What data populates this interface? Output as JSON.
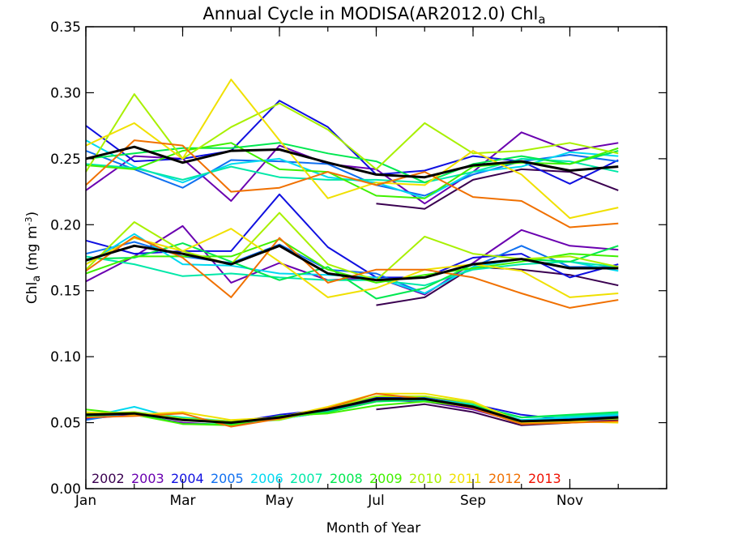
{
  "chart_data": {
    "type": "line",
    "title": {
      "main": "Annual Cycle in MODISA(AR2012.0) Chl",
      "sub": "a"
    },
    "xlabel": "Month of Year",
    "ylabel": {
      "main": "Chl",
      "sub": "a",
      "unit_open": " (mg m",
      "unit_sup": "-3",
      "unit_close": ")"
    },
    "xlim": [
      1,
      13
    ],
    "ylim": [
      0,
      0.35
    ],
    "x_ticks": [
      {
        "value": 1,
        "label": "Jan"
      },
      {
        "value": 3,
        "label": "Mar"
      },
      {
        "value": 5,
        "label": "May"
      },
      {
        "value": 7,
        "label": "Jul"
      },
      {
        "value": 9,
        "label": "Sep"
      },
      {
        "value": 11,
        "label": "Nov"
      }
    ],
    "y_ticks": [
      {
        "value": 0.0,
        "label": "0.00"
      },
      {
        "value": 0.05,
        "label": "0.05"
      },
      {
        "value": 0.1,
        "label": "0.10"
      },
      {
        "value": 0.15,
        "label": "0.15"
      },
      {
        "value": 0.2,
        "label": "0.20"
      },
      {
        "value": 0.25,
        "label": "0.25"
      },
      {
        "value": 0.3,
        "label": "0.30"
      },
      {
        "value": 0.35,
        "label": "0.35"
      }
    ],
    "x": [
      1,
      2,
      3,
      4,
      5,
      6,
      7,
      8,
      9,
      10,
      11,
      12
    ],
    "legend_placement": "bottom-left",
    "series": [
      {
        "name": "2002",
        "color": "#3a0050",
        "high": [
          null,
          null,
          null,
          null,
          null,
          null,
          0.216,
          0.212,
          0.234,
          0.242,
          0.24,
          0.226
        ],
        "mid": [
          null,
          null,
          null,
          null,
          null,
          null,
          0.139,
          0.145,
          0.168,
          0.166,
          0.162,
          0.154
        ],
        "low": [
          null,
          null,
          null,
          null,
          null,
          null,
          0.06,
          0.064,
          0.058,
          0.048,
          0.05,
          0.052
        ]
      },
      {
        "name": "2003",
        "color": "#6a00b0",
        "high": [
          0.226,
          0.252,
          0.25,
          0.218,
          0.26,
          0.246,
          0.242,
          0.216,
          0.24,
          0.27,
          0.256,
          0.262
        ],
        "mid": [
          0.157,
          0.176,
          0.199,
          0.156,
          0.171,
          0.158,
          0.16,
          0.147,
          0.171,
          0.196,
          0.184,
          0.181
        ],
        "low": [
          0.053,
          0.056,
          0.05,
          0.048,
          0.053,
          0.058,
          0.067,
          0.066,
          0.06,
          0.05,
          0.051,
          0.053
        ]
      },
      {
        "name": "2004",
        "color": "#1010e0",
        "high": [
          0.275,
          0.248,
          0.25,
          0.256,
          0.294,
          0.274,
          0.238,
          0.241,
          0.252,
          0.248,
          0.231,
          0.249
        ],
        "mid": [
          0.188,
          0.178,
          0.18,
          0.18,
          0.223,
          0.183,
          0.16,
          0.16,
          0.175,
          0.178,
          0.16,
          0.17
        ],
        "low": [
          0.054,
          0.057,
          0.052,
          0.05,
          0.056,
          0.06,
          0.069,
          0.07,
          0.064,
          0.056,
          0.052,
          0.054
        ]
      },
      {
        "name": "2005",
        "color": "#1070f0",
        "high": [
          0.256,
          0.242,
          0.228,
          0.249,
          0.248,
          0.246,
          0.23,
          0.222,
          0.238,
          0.248,
          0.253,
          0.248
        ],
        "mid": [
          0.178,
          0.187,
          0.176,
          0.171,
          0.185,
          0.166,
          0.163,
          0.148,
          0.168,
          0.184,
          0.168,
          0.168
        ],
        "low": [
          0.052,
          0.058,
          0.052,
          0.05,
          0.053,
          0.059,
          0.068,
          0.069,
          0.062,
          0.052,
          0.053,
          0.055
        ]
      },
      {
        "name": "2006",
        "color": "#00d8f0",
        "high": [
          0.264,
          0.244,
          0.232,
          0.246,
          0.25,
          0.236,
          0.232,
          0.22,
          0.24,
          0.244,
          0.255,
          0.252
        ],
        "mid": [
          0.17,
          0.193,
          0.17,
          0.169,
          0.163,
          0.162,
          0.16,
          0.148,
          0.168,
          0.174,
          0.172,
          0.165
        ],
        "low": [
          0.054,
          0.062,
          0.052,
          0.05,
          0.052,
          0.06,
          0.068,
          0.068,
          0.064,
          0.052,
          0.054,
          0.056
        ]
      },
      {
        "name": "2007",
        "color": "#00e8a8",
        "high": [
          0.246,
          0.243,
          0.234,
          0.244,
          0.236,
          0.234,
          0.234,
          0.232,
          0.24,
          0.25,
          0.248,
          0.24
        ],
        "mid": [
          0.176,
          0.17,
          0.161,
          0.163,
          0.16,
          0.158,
          0.158,
          0.154,
          0.166,
          0.17,
          0.172,
          0.168
        ],
        "low": [
          0.055,
          0.058,
          0.054,
          0.051,
          0.053,
          0.058,
          0.066,
          0.067,
          0.063,
          0.054,
          0.055,
          0.057
        ]
      },
      {
        "name": "2008",
        "color": "#00e850",
        "high": [
          0.25,
          0.254,
          0.258,
          0.258,
          0.262,
          0.254,
          0.248,
          0.232,
          0.246,
          0.252,
          0.246,
          0.256
        ],
        "mid": [
          0.174,
          0.175,
          0.186,
          0.172,
          0.158,
          0.168,
          0.144,
          0.152,
          0.17,
          0.174,
          0.172,
          0.184
        ],
        "low": [
          0.055,
          0.057,
          0.049,
          0.049,
          0.054,
          0.058,
          0.066,
          0.068,
          0.063,
          0.054,
          0.056,
          0.058
        ]
      },
      {
        "name": "2009",
        "color": "#40f000",
        "high": [
          0.245,
          0.242,
          0.256,
          0.262,
          0.242,
          0.24,
          0.222,
          0.22,
          0.244,
          0.247,
          0.246,
          0.258
        ],
        "mid": [
          0.163,
          0.176,
          0.176,
          0.176,
          0.189,
          0.166,
          0.156,
          0.162,
          0.167,
          0.172,
          0.178,
          0.176
        ],
        "low": [
          0.06,
          0.056,
          0.049,
          0.048,
          0.055,
          0.057,
          0.063,
          0.066,
          0.062,
          0.05,
          0.051,
          0.054
        ]
      },
      {
        "name": "2010",
        "color": "#a8f000",
        "high": [
          0.24,
          0.299,
          0.25,
          0.274,
          0.292,
          0.272,
          0.242,
          0.277,
          0.254,
          0.256,
          0.262,
          0.254
        ],
        "mid": [
          0.166,
          0.202,
          0.18,
          0.17,
          0.209,
          0.17,
          0.158,
          0.191,
          0.178,
          0.174,
          0.176,
          0.168
        ],
        "low": [
          0.057,
          0.058,
          0.053,
          0.051,
          0.052,
          0.061,
          0.07,
          0.07,
          0.065,
          0.051,
          0.052,
          0.053
        ]
      },
      {
        "name": "2011",
        "color": "#f0e000",
        "high": [
          0.26,
          0.277,
          0.25,
          0.31,
          0.264,
          0.22,
          0.232,
          0.23,
          0.256,
          0.238,
          0.205,
          0.213
        ],
        "mid": [
          0.17,
          0.19,
          0.18,
          0.197,
          0.172,
          0.145,
          0.152,
          0.166,
          0.17,
          0.165,
          0.145,
          0.148
        ],
        "low": [
          0.058,
          0.056,
          0.058,
          0.052,
          0.054,
          0.062,
          0.072,
          0.072,
          0.066,
          0.05,
          0.051,
          0.05
        ]
      },
      {
        "name": "2012",
        "color": "#f07000",
        "high": [
          0.23,
          0.264,
          0.26,
          0.225,
          0.228,
          0.24,
          0.23,
          0.24,
          0.221,
          0.218,
          0.198,
          0.201
        ],
        "mid": [
          0.165,
          0.191,
          0.175,
          0.145,
          0.19,
          0.156,
          0.166,
          0.166,
          0.16,
          0.148,
          0.137,
          0.143
        ],
        "low": [
          0.054,
          0.055,
          0.057,
          0.047,
          0.053,
          0.061,
          0.072,
          0.068,
          0.061,
          0.049,
          0.05,
          0.051
        ]
      },
      {
        "name": "2013",
        "color": "#f01000",
        "high": [],
        "mid": [],
        "low": []
      }
    ],
    "climatology": {
      "color": "#000000",
      "high": [
        0.25,
        0.259,
        0.247,
        0.256,
        0.257,
        0.247,
        0.238,
        0.236,
        0.245,
        0.248,
        0.241,
        0.244
      ],
      "mid": [
        0.173,
        0.184,
        0.178,
        0.17,
        0.184,
        0.163,
        0.158,
        0.16,
        0.17,
        0.174,
        0.167,
        0.167
      ],
      "low": [
        0.056,
        0.057,
        0.052,
        0.05,
        0.054,
        0.06,
        0.068,
        0.068,
        0.062,
        0.051,
        0.052,
        0.054
      ]
    }
  }
}
